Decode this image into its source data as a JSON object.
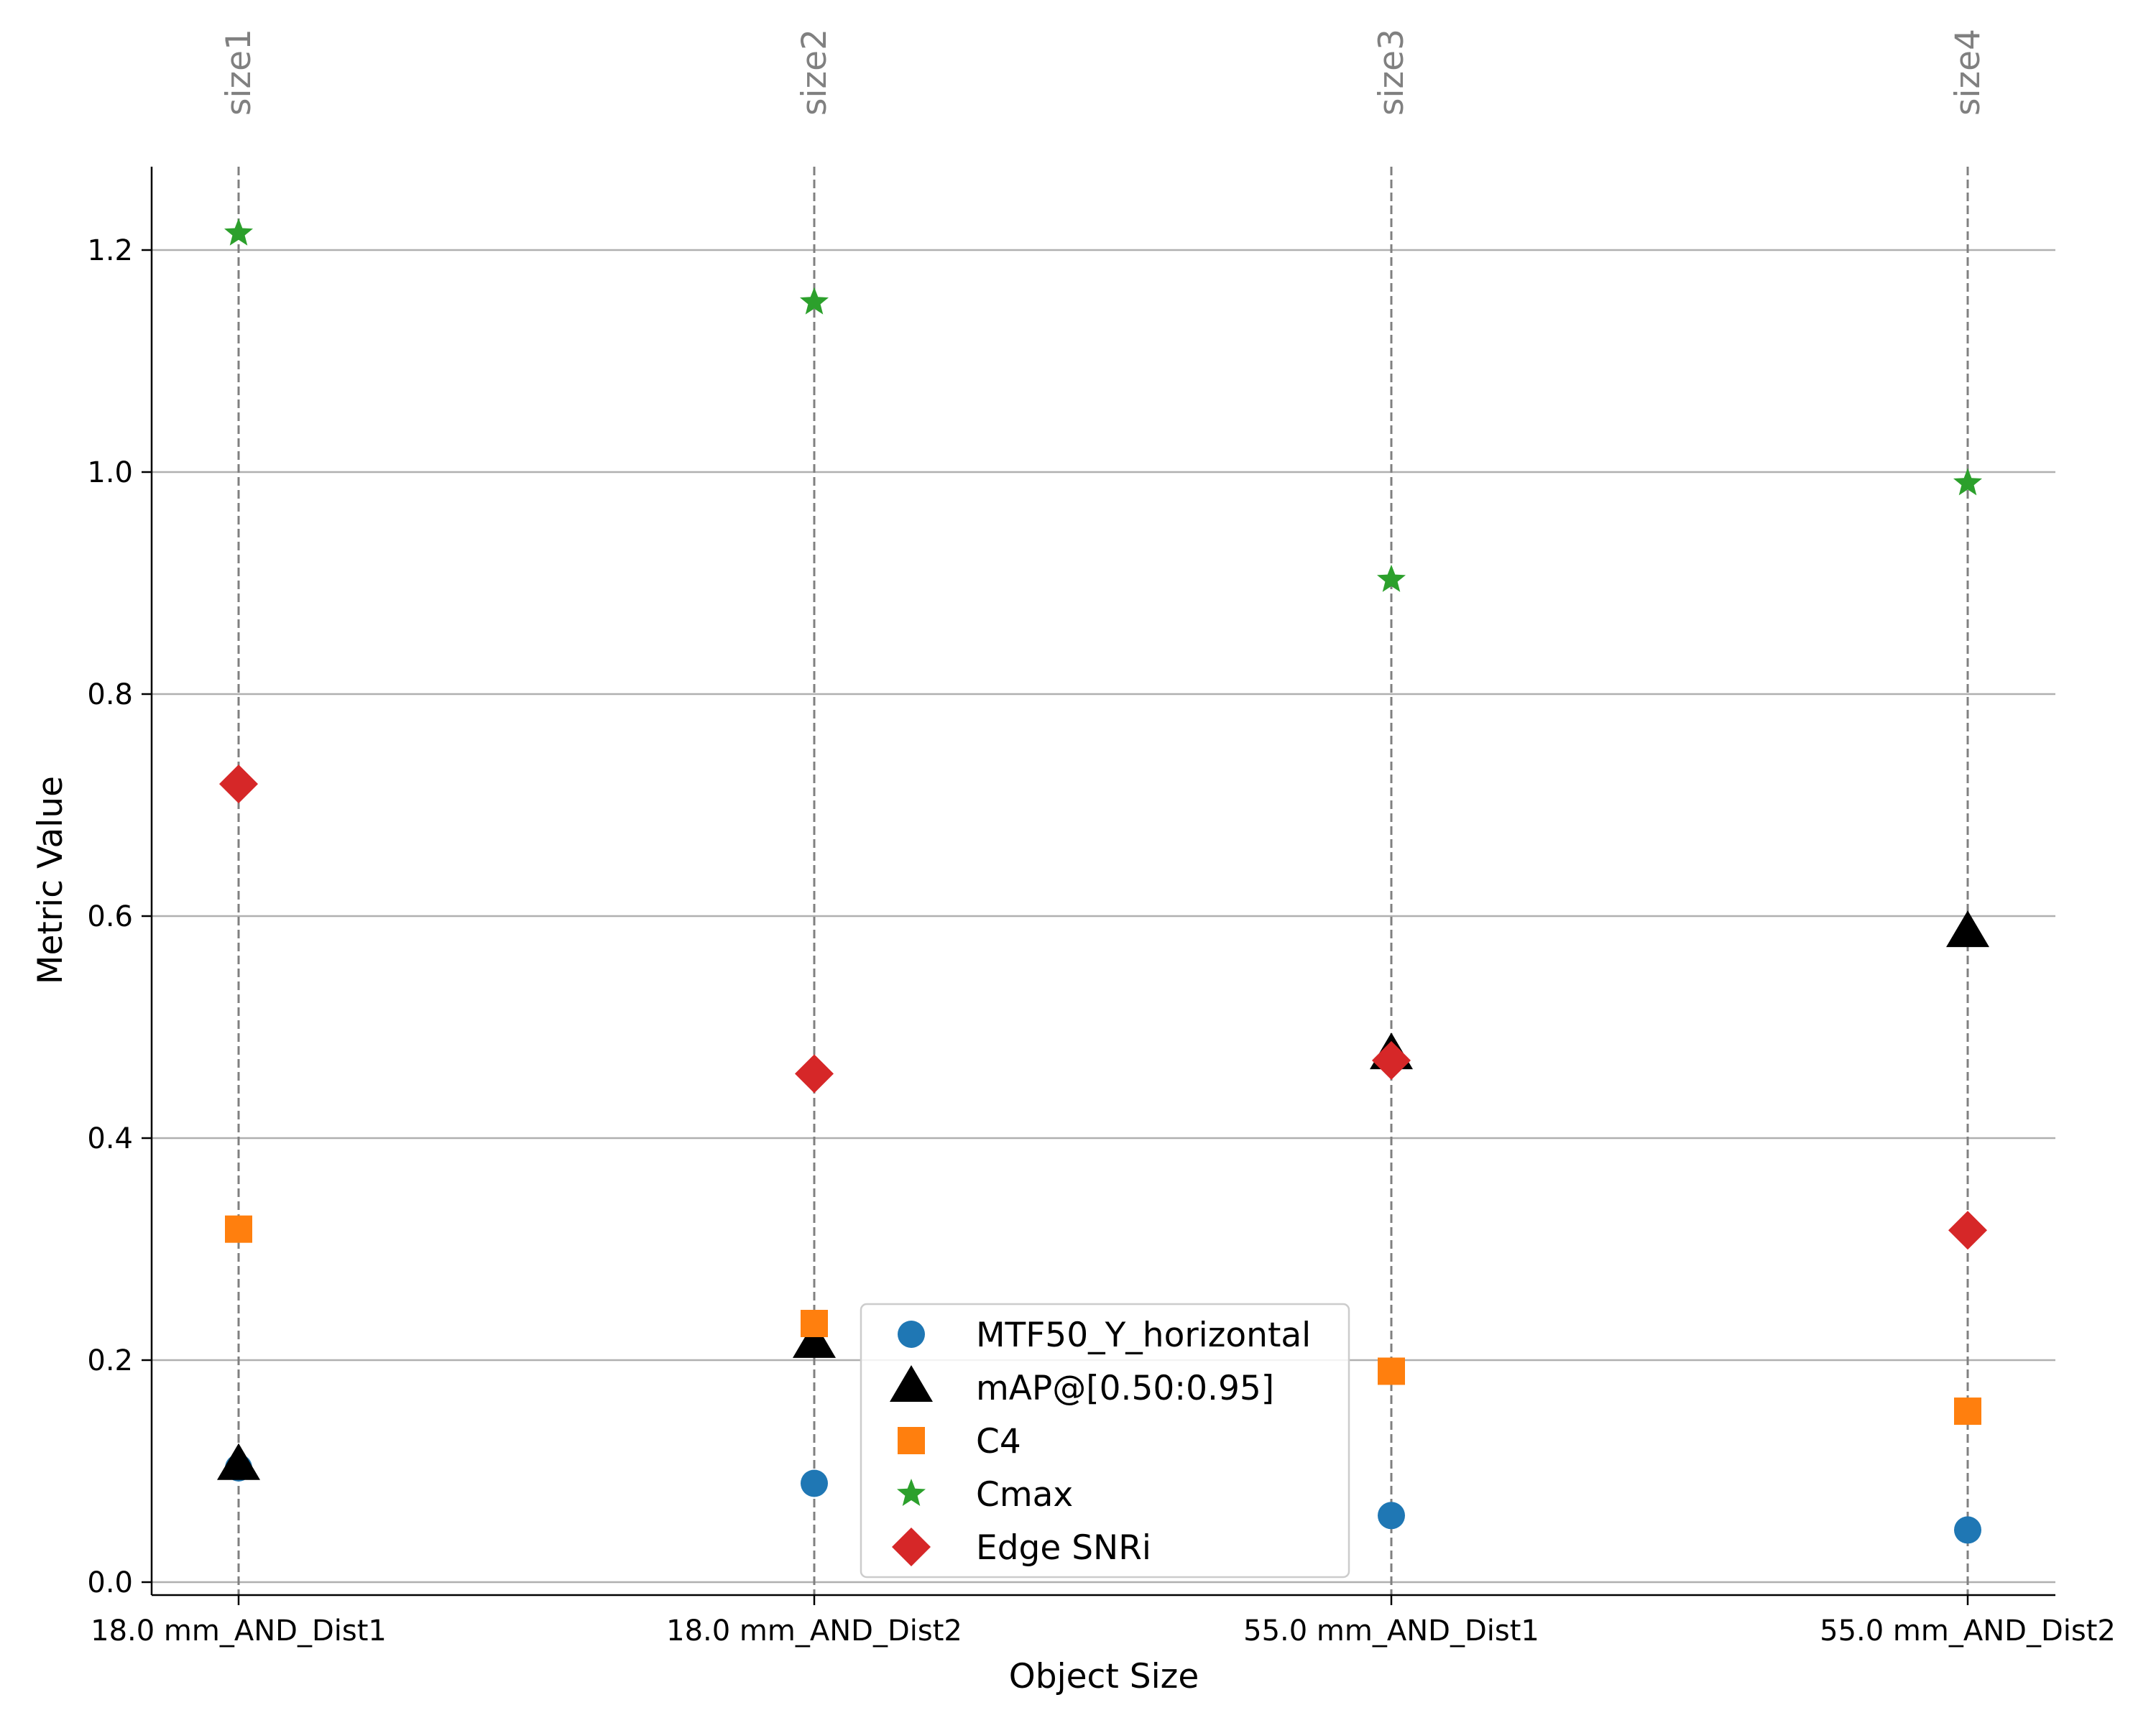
{
  "chart_data": {
    "type": "scatter",
    "xlabel": "Object Size",
    "ylabel": "Metric Value",
    "categories": [
      "18.0 mm_AND_Dist1",
      "18.0 mm_AND_Dist2",
      "55.0 mm_AND_Dist1",
      "55.0 mm_AND_Dist2"
    ],
    "top_labels": [
      "size1",
      "size2",
      "size3",
      "size4"
    ],
    "ylim": [
      -0.02,
      1.275
    ],
    "yticks": [
      "0.0",
      "0.2",
      "0.4",
      "0.6",
      "0.8",
      "1.0",
      "1.2"
    ],
    "grid": "horizontal",
    "vertical_guides": "dashed gray at each category",
    "legend_position": "bottom-center",
    "series": [
      {
        "name": "MTF50_Y_horizontal",
        "marker": "circle",
        "color": "#1f77b4",
        "values": [
          0.103,
          0.089,
          0.06,
          0.047
        ]
      },
      {
        "name": "mAP@[0.50:0.95]",
        "marker": "triangle",
        "color": "#000000",
        "values": [
          0.105,
          0.215,
          0.475,
          0.585
        ]
      },
      {
        "name": "C4",
        "marker": "square",
        "color": "#ff7f0e",
        "values": [
          0.318,
          0.233,
          0.19,
          0.154
        ]
      },
      {
        "name": "Cmax",
        "marker": "star",
        "color": "#2ca02c",
        "values": [
          1.215,
          1.153,
          0.903,
          0.99
        ]
      },
      {
        "name": "Edge SNRi",
        "marker": "diamond",
        "color": "#d62728",
        "values": [
          0.719,
          0.458,
          0.47,
          0.317
        ]
      }
    ]
  }
}
